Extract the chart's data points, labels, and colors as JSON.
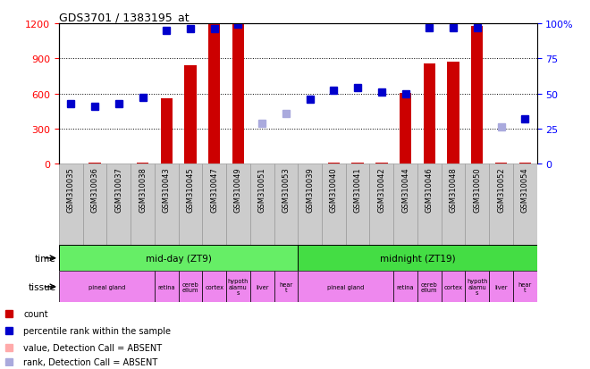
{
  "title": "GDS3701 / 1383195_at",
  "samples": [
    "GSM310035",
    "GSM310036",
    "GSM310037",
    "GSM310038",
    "GSM310043",
    "GSM310045",
    "GSM310047",
    "GSM310049",
    "GSM310051",
    "GSM310053",
    "GSM310039",
    "GSM310040",
    "GSM310041",
    "GSM310042",
    "GSM310044",
    "GSM310046",
    "GSM310048",
    "GSM310050",
    "GSM310052",
    "GSM310054"
  ],
  "count_values": [
    5,
    8,
    5,
    8,
    560,
    840,
    1195,
    1200,
    5,
    5,
    5,
    8,
    10,
    8,
    605,
    858,
    868,
    1180,
    8,
    8
  ],
  "count_absent": [
    false,
    false,
    false,
    false,
    false,
    false,
    false,
    false,
    false,
    false,
    false,
    false,
    false,
    false,
    false,
    false,
    false,
    false,
    false,
    false
  ],
  "rank_values": [
    43,
    41,
    43,
    47,
    95,
    96,
    96,
    99,
    29,
    36,
    46,
    52,
    54,
    51,
    50,
    97,
    97,
    97,
    26,
    32
  ],
  "rank_absent": [
    false,
    false,
    false,
    false,
    false,
    false,
    false,
    false,
    true,
    true,
    false,
    false,
    false,
    false,
    false,
    false,
    false,
    false,
    true,
    false
  ],
  "tissue_groups": [
    {
      "label": "pineal gland",
      "start": 0,
      "end": 4
    },
    {
      "label": "retina",
      "start": 4,
      "end": 5
    },
    {
      "label": "cereb\nellum",
      "start": 5,
      "end": 6
    },
    {
      "label": "cortex",
      "start": 6,
      "end": 7
    },
    {
      "label": "hypoth\nalamu\ns",
      "start": 7,
      "end": 8
    },
    {
      "label": "liver",
      "start": 8,
      "end": 9
    },
    {
      "label": "hear\nt",
      "start": 9,
      "end": 10
    },
    {
      "label": "pineal gland",
      "start": 10,
      "end": 14
    },
    {
      "label": "retina",
      "start": 14,
      "end": 15
    },
    {
      "label": "cereb\nellum",
      "start": 15,
      "end": 16
    },
    {
      "label": "cortex",
      "start": 16,
      "end": 17
    },
    {
      "label": "hypoth\nalamu\ns",
      "start": 17,
      "end": 18
    },
    {
      "label": "liver",
      "start": 18,
      "end": 19
    },
    {
      "label": "hear\nt",
      "start": 19,
      "end": 20
    }
  ],
  "ylim_left": [
    0,
    1200
  ],
  "ylim_right": [
    0,
    100
  ],
  "yticks_left": [
    0,
    300,
    600,
    900,
    1200
  ],
  "yticks_right": [
    0,
    25,
    50,
    75,
    100
  ],
  "count_color": "#cc0000",
  "rank_color": "#0000cc",
  "rank_absent_color": "#aaaadd",
  "count_absent_color": "#ffaaaa",
  "bar_width": 0.5,
  "marker_size": 6,
  "time_midday_color": "#66ee66",
  "time_midnight_color": "#44dd44",
  "tissue_color": "#ee88ee",
  "label_bg_color": "#cccccc"
}
